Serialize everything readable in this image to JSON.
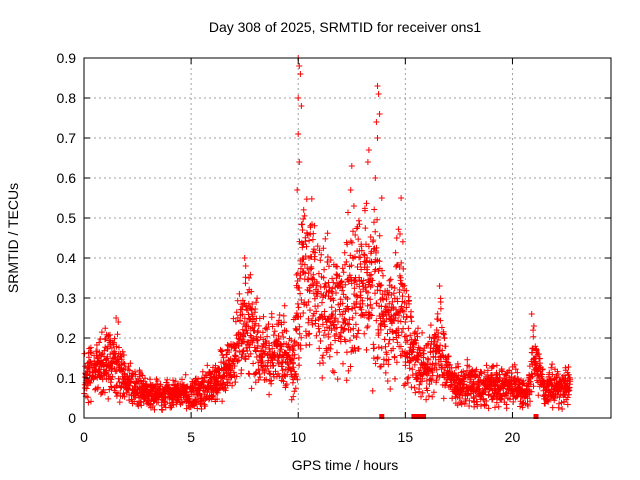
{
  "chart_data": {
    "type": "scatter",
    "title": "Day 308 of 2025, SRMTID for receiver ons1",
    "xlabel": "GPS time / hours",
    "ylabel": "SRMTID / TECUs",
    "xlim": [
      0,
      24.6
    ],
    "ylim": [
      0,
      0.9
    ],
    "x_ticks": [
      0,
      5,
      10,
      15,
      20
    ],
    "x_tick_labels": [
      "0",
      "5",
      "10",
      "15",
      "20"
    ],
    "y_ticks": [
      0,
      0.1,
      0.2,
      0.3,
      0.4,
      0.5,
      0.6,
      0.7,
      0.8,
      0.9
    ],
    "y_tick_labels": [
      "0",
      "0.1",
      "0.2",
      "0.3",
      "0.4",
      "0.5",
      "0.6",
      "0.7",
      "0.8",
      "0.9"
    ],
    "grid": true,
    "marker": "+",
    "color": "#ff0000",
    "series": [
      {
        "name": "SRMTID",
        "description": "per-epoch SRMTID values (approximate envelope: median and spread per hour)",
        "envelope": [
          {
            "x": 0.0,
            "median": 0.1,
            "spread": 0.035
          },
          {
            "x": 1.0,
            "median": 0.14,
            "spread": 0.045
          },
          {
            "x": 1.6,
            "median": 0.13,
            "spread": 0.05
          },
          {
            "x": 2.0,
            "median": 0.09,
            "spread": 0.03
          },
          {
            "x": 3.0,
            "median": 0.06,
            "spread": 0.02
          },
          {
            "x": 4.0,
            "median": 0.06,
            "spread": 0.02
          },
          {
            "x": 5.0,
            "median": 0.06,
            "spread": 0.025
          },
          {
            "x": 6.0,
            "median": 0.08,
            "spread": 0.03
          },
          {
            "x": 6.8,
            "median": 0.12,
            "spread": 0.04
          },
          {
            "x": 7.6,
            "median": 0.25,
            "spread": 0.08
          },
          {
            "x": 8.3,
            "median": 0.15,
            "spread": 0.05
          },
          {
            "x": 9.0,
            "median": 0.16,
            "spread": 0.06
          },
          {
            "x": 9.8,
            "median": 0.14,
            "spread": 0.06
          },
          {
            "x": 10.2,
            "median": 0.36,
            "spread": 0.12
          },
          {
            "x": 11.0,
            "median": 0.28,
            "spread": 0.1
          },
          {
            "x": 12.0,
            "median": 0.28,
            "spread": 0.1
          },
          {
            "x": 12.8,
            "median": 0.35,
            "spread": 0.12
          },
          {
            "x": 13.5,
            "median": 0.32,
            "spread": 0.12
          },
          {
            "x": 14.2,
            "median": 0.22,
            "spread": 0.08
          },
          {
            "x": 14.8,
            "median": 0.28,
            "spread": 0.1
          },
          {
            "x": 15.3,
            "median": 0.16,
            "spread": 0.06
          },
          {
            "x": 16.0,
            "median": 0.12,
            "spread": 0.04
          },
          {
            "x": 16.6,
            "median": 0.18,
            "spread": 0.06
          },
          {
            "x": 17.2,
            "median": 0.08,
            "spread": 0.03
          },
          {
            "x": 18.0,
            "median": 0.08,
            "spread": 0.03
          },
          {
            "x": 19.0,
            "median": 0.085,
            "spread": 0.03
          },
          {
            "x": 20.0,
            "median": 0.08,
            "spread": 0.03
          },
          {
            "x": 20.7,
            "median": 0.06,
            "spread": 0.02
          },
          {
            "x": 21.0,
            "median": 0.16,
            "spread": 0.04
          },
          {
            "x": 21.5,
            "median": 0.07,
            "spread": 0.025
          },
          {
            "x": 22.0,
            "median": 0.08,
            "spread": 0.03
          },
          {
            "x": 22.7,
            "median": 0.08,
            "spread": 0.025
          }
        ],
        "notable_points": [
          {
            "x": 10.0,
            "y": 0.9
          },
          {
            "x": 10.05,
            "y": 0.88
          },
          {
            "x": 10.1,
            "y": 0.86
          },
          {
            "x": 10.0,
            "y": 0.8
          },
          {
            "x": 10.15,
            "y": 0.78
          },
          {
            "x": 10.0,
            "y": 0.71
          },
          {
            "x": 10.05,
            "y": 0.64
          },
          {
            "x": 9.95,
            "y": 0.57
          },
          {
            "x": 10.2,
            "y": 0.47
          },
          {
            "x": 13.7,
            "y": 0.83
          },
          {
            "x": 13.75,
            "y": 0.81
          },
          {
            "x": 13.8,
            "y": 0.76
          },
          {
            "x": 13.65,
            "y": 0.74
          },
          {
            "x": 13.7,
            "y": 0.7
          },
          {
            "x": 13.3,
            "y": 0.67
          },
          {
            "x": 13.25,
            "y": 0.64
          },
          {
            "x": 13.6,
            "y": 0.6
          },
          {
            "x": 12.5,
            "y": 0.63
          },
          {
            "x": 12.45,
            "y": 0.57
          },
          {
            "x": 12.6,
            "y": 0.53
          },
          {
            "x": 13.9,
            "y": 0.55
          },
          {
            "x": 14.8,
            "y": 0.55
          },
          {
            "x": 14.75,
            "y": 0.46
          },
          {
            "x": 14.6,
            "y": 0.45
          },
          {
            "x": 7.5,
            "y": 0.4
          },
          {
            "x": 7.55,
            "y": 0.38
          },
          {
            "x": 7.7,
            "y": 0.35
          },
          {
            "x": 16.6,
            "y": 0.33
          },
          {
            "x": 16.65,
            "y": 0.29
          },
          {
            "x": 1.5,
            "y": 0.25
          },
          {
            "x": 1.6,
            "y": 0.24
          },
          {
            "x": 20.9,
            "y": 0.26
          },
          {
            "x": 21.0,
            "y": 0.23
          }
        ],
        "zero_points": [
          13.9,
          15.4,
          15.5,
          15.65,
          15.75,
          15.85,
          21.1
        ]
      }
    ]
  }
}
